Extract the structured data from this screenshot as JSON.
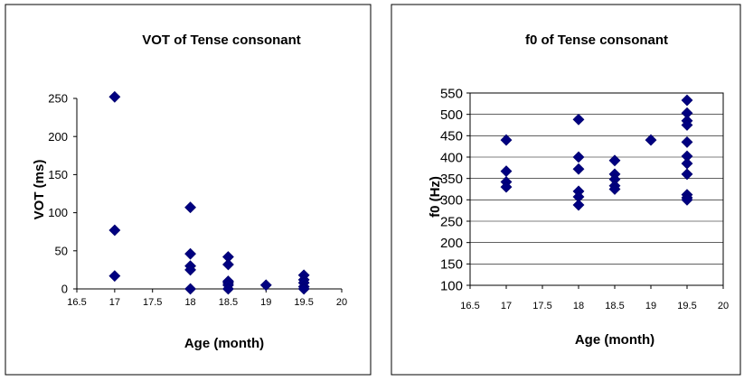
{
  "chart_data": [
    {
      "type": "scatter",
      "title": "VOT of Tense consonant",
      "xlabel": "Age (month)",
      "ylabel": "VOT (ms)",
      "xlim": [
        16.5,
        20
      ],
      "ylim": [
        0,
        250
      ],
      "xticks": [
        "16.5",
        "17",
        "17.5",
        "18",
        "18.5",
        "19",
        "19.5",
        "20"
      ],
      "yticks": [
        "0",
        "50",
        "100",
        "150",
        "200",
        "250"
      ],
      "grid": false,
      "marker_color": "#000080",
      "series": [
        {
          "x": [
            17,
            17,
            17,
            18,
            18,
            18,
            18,
            18,
            18.5,
            18.5,
            18.5,
            18.5,
            18.5,
            18.5,
            19,
            19.5,
            19.5,
            19.5,
            19.5,
            19.5
          ],
          "y": [
            252,
            77,
            17,
            0,
            107,
            46,
            30,
            25,
            8,
            42,
            32,
            10,
            5,
            0,
            5,
            18,
            12,
            8,
            3,
            0
          ]
        }
      ]
    },
    {
      "type": "scatter",
      "title": "f0 of Tense consonant",
      "xlabel": "Age (month)",
      "ylabel": "f0 (Hz)",
      "xlim": [
        16.5,
        20
      ],
      "ylim": [
        100,
        550
      ],
      "xticks": [
        "16.5",
        "17",
        "17.5",
        "18",
        "18.5",
        "19",
        "19.5",
        "20"
      ],
      "yticks": [
        "100",
        "150",
        "200",
        "250",
        "300",
        "350",
        "400",
        "450",
        "500",
        "550"
      ],
      "grid": true,
      "marker_color": "#000080",
      "series": [
        {
          "x": [
            17,
            17,
            17,
            17,
            18,
            18,
            18,
            18,
            18,
            18,
            18.5,
            18.5,
            18.5,
            18.5,
            18.5,
            19,
            19.5,
            19.5,
            19.5,
            19.5,
            19.5,
            19.5,
            19.5,
            19.5,
            19.5,
            19.5,
            19.5
          ],
          "y": [
            440,
            367,
            342,
            330,
            488,
            400,
            372,
            320,
            307,
            288,
            392,
            360,
            348,
            333,
            325,
            440,
            533,
            503,
            485,
            475,
            435,
            402,
            385,
            360,
            312,
            305,
            300
          ]
        }
      ]
    }
  ]
}
